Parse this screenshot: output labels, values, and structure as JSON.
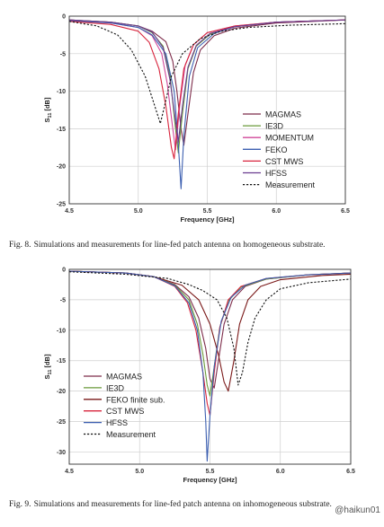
{
  "chart_data": [
    {
      "type": "line",
      "xlabel": "Frequency [GHz]",
      "ylabel": "S11 [dB]",
      "ylabel_main": "S",
      "ylabel_sub": "11",
      "ylabel_unit": "[dB]",
      "xlim": [
        4.5,
        6.5
      ],
      "ylim": [
        -25,
        0
      ],
      "xticks": [
        "4.5",
        "5.0",
        "5.5",
        "6.0",
        "6.5"
      ],
      "yticks": [
        "0",
        "-5",
        "-10",
        "-15",
        "-20",
        "-25"
      ],
      "grid": true,
      "legend_position": "bottom-right",
      "series": [
        {
          "name": "MAGMAS",
          "color": "#7d2c4a",
          "dash": false,
          "points": [
            [
              4.5,
              -0.5
            ],
            [
              4.8,
              -0.8
            ],
            [
              5.0,
              -1.3
            ],
            [
              5.1,
              -2.0
            ],
            [
              5.2,
              -3.4
            ],
            [
              5.25,
              -6.0
            ],
            [
              5.28,
              -10.0
            ],
            [
              5.31,
              -15.0
            ],
            [
              5.33,
              -17.2
            ],
            [
              5.36,
              -13.0
            ],
            [
              5.4,
              -7.5
            ],
            [
              5.45,
              -4.5
            ],
            [
              5.55,
              -2.6
            ],
            [
              5.7,
              -1.6
            ],
            [
              6.0,
              -0.9
            ],
            [
              6.5,
              -0.5
            ]
          ]
        },
        {
          "name": "IE3D",
          "color": "#6a9a3a",
          "dash": false,
          "points": [
            [
              4.5,
              -0.5
            ],
            [
              4.8,
              -0.8
            ],
            [
              5.0,
              -1.3
            ],
            [
              5.1,
              -2.2
            ],
            [
              5.18,
              -4.0
            ],
            [
              5.23,
              -8.0
            ],
            [
              5.27,
              -15.0
            ],
            [
              5.29,
              -18.2
            ],
            [
              5.32,
              -13.0
            ],
            [
              5.36,
              -7.0
            ],
            [
              5.42,
              -4.0
            ],
            [
              5.52,
              -2.4
            ],
            [
              5.7,
              -1.4
            ],
            [
              6.0,
              -0.8
            ],
            [
              6.5,
              -0.5
            ]
          ]
        },
        {
          "name": "MOMENTUM",
          "color": "#d0479a",
          "dash": false,
          "points": [
            [
              4.5,
              -0.5
            ],
            [
              4.8,
              -0.9
            ],
            [
              5.0,
              -1.5
            ],
            [
              5.1,
              -2.6
            ],
            [
              5.17,
              -5.0
            ],
            [
              5.21,
              -9.0
            ],
            [
              5.25,
              -15.0
            ],
            [
              5.27,
              -17.8
            ],
            [
              5.3,
              -12.0
            ],
            [
              5.34,
              -6.5
            ],
            [
              5.4,
              -3.8
            ],
            [
              5.5,
              -2.2
            ],
            [
              5.7,
              -1.3
            ],
            [
              6.0,
              -0.8
            ],
            [
              6.5,
              -0.5
            ]
          ]
        },
        {
          "name": "FEKO",
          "color": "#3c5fb0",
          "dash": false,
          "points": [
            [
              4.5,
              -0.6
            ],
            [
              4.8,
              -0.9
            ],
            [
              5.0,
              -1.5
            ],
            [
              5.1,
              -2.5
            ],
            [
              5.2,
              -5.0
            ],
            [
              5.26,
              -10.0
            ],
            [
              5.29,
              -17.0
            ],
            [
              5.31,
              -23.0
            ],
            [
              5.33,
              -16.0
            ],
            [
              5.37,
              -8.0
            ],
            [
              5.43,
              -4.2
            ],
            [
              5.55,
              -2.3
            ],
            [
              5.7,
              -1.4
            ],
            [
              6.0,
              -0.8
            ],
            [
              6.5,
              -0.5
            ]
          ]
        },
        {
          "name": "CST MWS",
          "color": "#d8243c",
          "dash": false,
          "points": [
            [
              4.5,
              -0.7
            ],
            [
              4.8,
              -1.1
            ],
            [
              5.0,
              -2.0
            ],
            [
              5.08,
              -3.5
            ],
            [
              5.15,
              -7.0
            ],
            [
              5.2,
              -12.0
            ],
            [
              5.24,
              -17.5
            ],
            [
              5.26,
              -19.0
            ],
            [
              5.29,
              -13.0
            ],
            [
              5.33,
              -7.0
            ],
            [
              5.4,
              -3.8
            ],
            [
              5.5,
              -2.2
            ],
            [
              5.7,
              -1.3
            ],
            [
              6.0,
              -0.8
            ],
            [
              6.5,
              -0.5
            ]
          ]
        },
        {
          "name": "HFSS",
          "color": "#6a3b8f",
          "dash": false,
          "points": [
            [
              4.5,
              -0.5
            ],
            [
              4.8,
              -0.8
            ],
            [
              5.0,
              -1.3
            ],
            [
              5.1,
              -2.1
            ],
            [
              5.18,
              -4.2
            ],
            [
              5.23,
              -8.5
            ],
            [
              5.27,
              -14.0
            ],
            [
              5.29,
              -16.8
            ],
            [
              5.32,
              -12.0
            ],
            [
              5.36,
              -6.8
            ],
            [
              5.42,
              -3.9
            ],
            [
              5.52,
              -2.3
            ],
            [
              5.7,
              -1.4
            ],
            [
              6.0,
              -0.8
            ],
            [
              6.5,
              -0.5
            ]
          ]
        },
        {
          "name": "Measurement",
          "color": "#111111",
          "dash": true,
          "points": [
            [
              4.5,
              -0.7
            ],
            [
              4.7,
              -1.3
            ],
            [
              4.85,
              -2.5
            ],
            [
              4.95,
              -4.5
            ],
            [
              5.05,
              -8.0
            ],
            [
              5.12,
              -12.0
            ],
            [
              5.16,
              -14.3
            ],
            [
              5.19,
              -12.0
            ],
            [
              5.24,
              -8.0
            ],
            [
              5.32,
              -5.0
            ],
            [
              5.45,
              -3.0
            ],
            [
              5.6,
              -2.0
            ],
            [
              5.8,
              -1.5
            ],
            [
              6.1,
              -1.2
            ],
            [
              6.5,
              -1.0
            ]
          ]
        }
      ]
    },
    {
      "type": "line",
      "xlabel": "Frequency [GHz]",
      "ylabel": "S11 [dB]",
      "ylabel_main": "S",
      "ylabel_sub": "11",
      "ylabel_unit": "[dB]",
      "xlim": [
        4.5,
        6.5
      ],
      "ylim": [
        -32,
        0
      ],
      "xticks": [
        "4.5",
        "5.0",
        "5.5",
        "6.0",
        "6.5"
      ],
      "yticks": [
        "0",
        "-5",
        "-10",
        "-15",
        "-20",
        "-25",
        "-30"
      ],
      "grid": true,
      "legend_position": "bottom-left",
      "series": [
        {
          "name": "MAGMAS",
          "color": "#7d2c4a",
          "dash": false,
          "points": [
            [
              4.5,
              -0.3
            ],
            [
              4.9,
              -0.6
            ],
            [
              5.1,
              -1.2
            ],
            [
              5.25,
              -2.5
            ],
            [
              5.35,
              -4.5
            ],
            [
              5.42,
              -8.0
            ],
            [
              5.47,
              -13.0
            ],
            [
              5.5,
              -18.0
            ],
            [
              5.53,
              -19.5
            ],
            [
              5.56,
              -15.0
            ],
            [
              5.6,
              -9.0
            ],
            [
              5.66,
              -5.0
            ],
            [
              5.75,
              -2.8
            ],
            [
              5.9,
              -1.6
            ],
            [
              6.2,
              -0.9
            ],
            [
              6.5,
              -0.6
            ]
          ]
        },
        {
          "name": "IE3D",
          "color": "#6a9a3a",
          "dash": false,
          "points": [
            [
              4.5,
              -0.3
            ],
            [
              4.9,
              -0.6
            ],
            [
              5.1,
              -1.2
            ],
            [
              5.25,
              -2.6
            ],
            [
              5.35,
              -5.0
            ],
            [
              5.41,
              -9.0
            ],
            [
              5.45,
              -14.0
            ],
            [
              5.48,
              -19.0
            ],
            [
              5.5,
              -20.8
            ],
            [
              5.53,
              -16.0
            ],
            [
              5.57,
              -9.5
            ],
            [
              5.63,
              -5.2
            ],
            [
              5.72,
              -2.9
            ],
            [
              5.9,
              -1.6
            ],
            [
              6.2,
              -0.9
            ],
            [
              6.5,
              -0.6
            ]
          ]
        },
        {
          "name": "FEKO finite sub.",
          "color": "#7a1818",
          "dash": false,
          "points": [
            [
              4.5,
              -0.3
            ],
            [
              4.9,
              -0.6
            ],
            [
              5.1,
              -1.2
            ],
            [
              5.3,
              -2.6
            ],
            [
              5.42,
              -5.0
            ],
            [
              5.5,
              -9.0
            ],
            [
              5.56,
              -14.0
            ],
            [
              5.6,
              -18.5
            ],
            [
              5.63,
              -20.0
            ],
            [
              5.67,
              -15.0
            ],
            [
              5.71,
              -9.0
            ],
            [
              5.77,
              -5.0
            ],
            [
              5.86,
              -2.8
            ],
            [
              6.0,
              -1.7
            ],
            [
              6.3,
              -1.0
            ],
            [
              6.5,
              -0.8
            ]
          ]
        },
        {
          "name": "CST MWS",
          "color": "#d8243c",
          "dash": false,
          "points": [
            [
              4.5,
              -0.3
            ],
            [
              4.9,
              -0.6
            ],
            [
              5.1,
              -1.2
            ],
            [
              5.25,
              -2.8
            ],
            [
              5.34,
              -5.5
            ],
            [
              5.4,
              -10.0
            ],
            [
              5.45,
              -17.0
            ],
            [
              5.48,
              -22.0
            ],
            [
              5.5,
              -24.0
            ],
            [
              5.53,
              -17.0
            ],
            [
              5.57,
              -9.5
            ],
            [
              5.63,
              -5.0
            ],
            [
              5.72,
              -2.8
            ],
            [
              5.9,
              -1.5
            ],
            [
              6.2,
              -0.9
            ],
            [
              6.5,
              -0.6
            ]
          ]
        },
        {
          "name": "HFSS",
          "color": "#3c5fb0",
          "dash": false,
          "points": [
            [
              4.5,
              -0.3
            ],
            [
              4.9,
              -0.6
            ],
            [
              5.1,
              -1.2
            ],
            [
              5.25,
              -2.7
            ],
            [
              5.35,
              -5.5
            ],
            [
              5.41,
              -10.0
            ],
            [
              5.45,
              -17.0
            ],
            [
              5.47,
              -25.0
            ],
            [
              5.48,
              -31.5
            ],
            [
              5.5,
              -24.0
            ],
            [
              5.53,
              -16.0
            ],
            [
              5.58,
              -8.5
            ],
            [
              5.65,
              -4.6
            ],
            [
              5.75,
              -2.6
            ],
            [
              5.9,
              -1.5
            ],
            [
              6.2,
              -0.9
            ],
            [
              6.5,
              -0.6
            ]
          ]
        },
        {
          "name": "Measurement",
          "color": "#111111",
          "dash": true,
          "points": [
            [
              4.5,
              -0.4
            ],
            [
              4.9,
              -0.8
            ],
            [
              5.2,
              -1.5
            ],
            [
              5.35,
              -2.5
            ],
            [
              5.45,
              -3.5
            ],
            [
              5.55,
              -5.0
            ],
            [
              5.62,
              -8.0
            ],
            [
              5.67,
              -13.0
            ],
            [
              5.7,
              -19.0
            ],
            [
              5.73,
              -17.0
            ],
            [
              5.77,
              -12.0
            ],
            [
              5.82,
              -8.0
            ],
            [
              5.9,
              -5.0
            ],
            [
              6.0,
              -3.2
            ],
            [
              6.2,
              -2.2
            ],
            [
              6.5,
              -1.6
            ]
          ]
        }
      ]
    }
  ],
  "captions": [
    {
      "number": "Fig. 8.",
      "text": "Simulations and measurements for line-fed patch antenna on homogeneous substrate."
    },
    {
      "number": "Fig. 9.",
      "text": "Simulations and measurements for line-fed patch antenna on inhomogeneous substrate."
    }
  ],
  "watermark": "@haikun01"
}
